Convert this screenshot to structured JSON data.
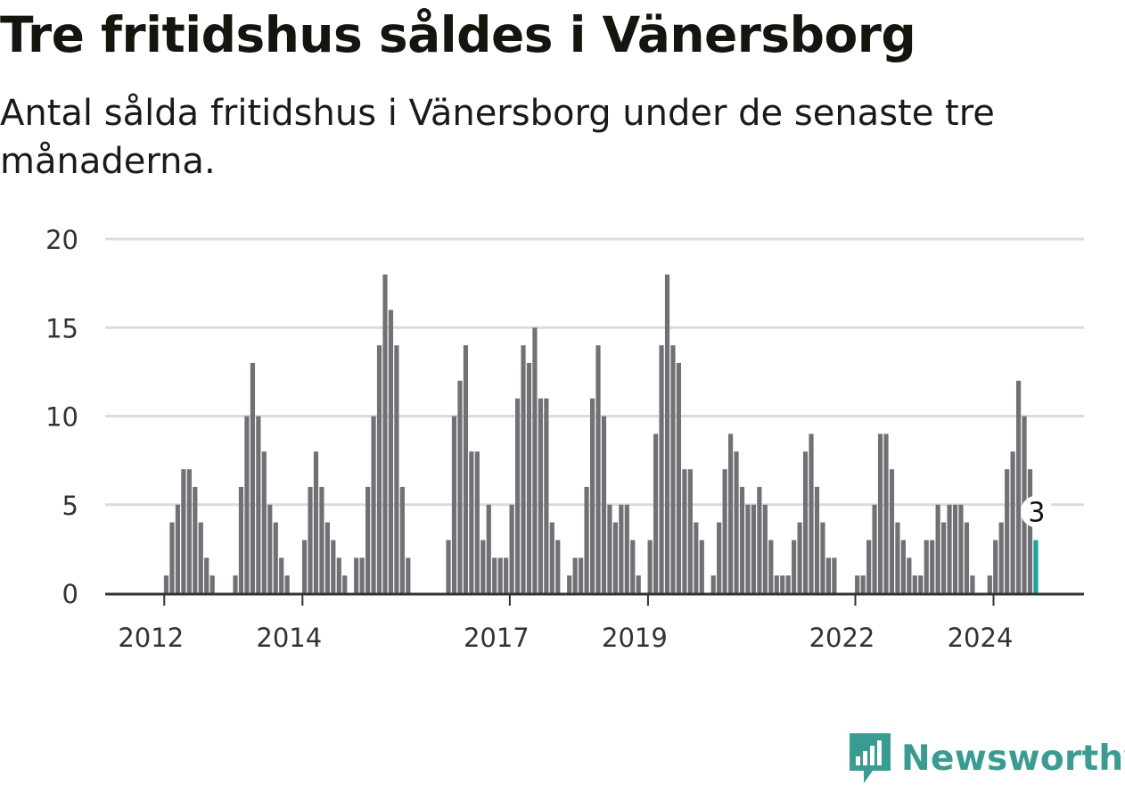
{
  "header": {
    "title": "Tre fritidshus såldes i Vänersborg",
    "subtitle": "Antal sålda fritidshus i Vänersborg under de senaste tre månaderna."
  },
  "branding": {
    "logo_text": "Newsworthy",
    "logo_icon": "bar-chart-speech-bubble-icon",
    "color": "#3a9b93"
  },
  "colors": {
    "bar": "#727075",
    "highlight": "#1aa79a",
    "grid": "#dcdcdc",
    "axis": "#333333"
  },
  "chart_data": {
    "type": "bar",
    "title": "Tre fritidshus såldes i Vänersborg",
    "subtitle": "Antal sålda fritidshus i Vänersborg under de senaste tre månaderna.",
    "xlabel": "",
    "ylabel": "",
    "ylim": [
      0,
      20
    ],
    "yticks": [
      0,
      5,
      10,
      15,
      20
    ],
    "xticks": [
      "2012",
      "2014",
      "2017",
      "2019",
      "2022",
      "2024"
    ],
    "grid": true,
    "frequency": "monthly",
    "x_start": "2011-06",
    "x_end": "2024-11",
    "highlight_last_label": "3",
    "values": [
      0,
      0,
      0,
      0,
      0,
      0,
      0,
      0,
      0,
      0,
      0,
      0,
      0,
      0,
      0,
      0,
      0,
      0,
      0,
      0,
      0,
      0,
      0,
      0,
      0,
      0,
      0,
      0,
      0,
      0,
      0,
      0,
      0,
      0,
      0,
      0,
      0,
      0,
      0,
      0,
      0,
      0,
      0,
      0,
      0,
      0,
      0,
      0,
      0,
      0,
      0,
      0,
      0,
      0,
      0,
      0,
      0,
      0,
      0,
      0,
      0,
      0,
      0,
      0,
      0,
      0,
      0,
      0,
      0,
      0,
      0,
      0,
      0,
      0,
      0,
      0,
      0,
      0,
      0,
      0,
      0,
      0,
      0,
      0,
      0,
      0,
      0,
      0,
      0,
      0,
      0,
      0,
      0,
      0,
      0,
      0,
      0,
      0,
      0,
      0,
      0,
      0,
      0,
      0,
      0,
      0,
      0,
      0,
      0,
      0,
      0,
      0,
      0,
      0,
      0,
      0,
      0,
      0,
      0,
      0,
      0,
      0,
      0,
      0,
      0,
      0,
      0,
      0,
      0,
      0,
      0,
      0,
      0,
      0,
      0,
      0,
      0,
      0,
      0,
      0,
      0,
      0,
      0,
      0,
      0,
      0,
      0,
      0,
      0,
      0,
      0,
      0,
      0,
      0,
      0,
      0,
      0,
      0,
      0,
      0,
      0,
      0,
      0,
      0,
      0,
      3
    ]
  }
}
